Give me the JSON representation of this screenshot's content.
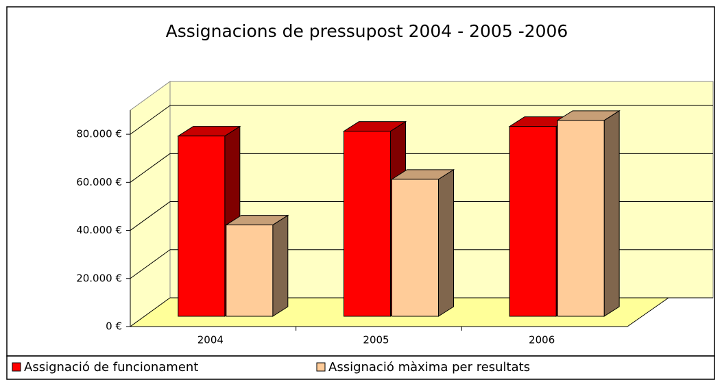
{
  "chart_data": {
    "type": "bar3d",
    "title": "Assignacions de pressupost  2004 - 2005 -2006",
    "categories": [
      "2004",
      "2005",
      "2006"
    ],
    "series": [
      {
        "name": "Assignació de funcionament",
        "color": "#ff0000",
        "values": [
          75000,
          77000,
          79000
        ]
      },
      {
        "name": "Assignació màxima per resultats",
        "color": "#ffcc99",
        "values": [
          38000,
          57000,
          81500
        ]
      }
    ],
    "ylim": [
      0,
      90000
    ],
    "yticks": [
      {
        "value": 0,
        "label": "0 €"
      },
      {
        "value": 20000,
        "label": "20.000 €"
      },
      {
        "value": 40000,
        "label": "40.000 €"
      },
      {
        "value": 60000,
        "label": "60.000 €"
      },
      {
        "value": 80000,
        "label": "80.000 €"
      }
    ],
    "grid": true,
    "legend": "bottom"
  }
}
